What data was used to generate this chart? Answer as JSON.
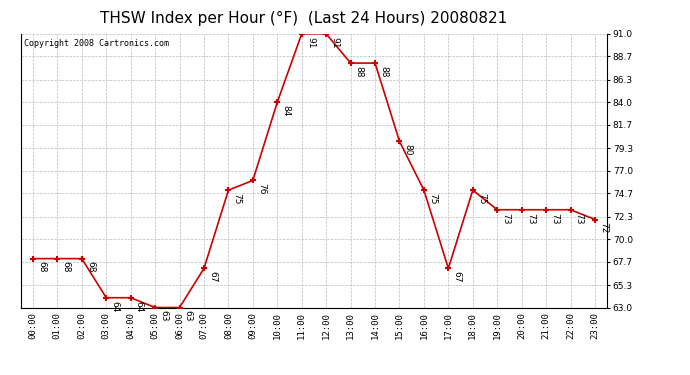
{
  "title": "THSW Index per Hour (°F)  (Last 24 Hours) 20080821",
  "copyright": "Copyright 2008 Cartronics.com",
  "hours": [
    "00:00",
    "01:00",
    "02:00",
    "03:00",
    "04:00",
    "05:00",
    "06:00",
    "07:00",
    "08:00",
    "09:00",
    "10:00",
    "11:00",
    "12:00",
    "13:00",
    "14:00",
    "15:00",
    "16:00",
    "17:00",
    "18:00",
    "19:00",
    "20:00",
    "21:00",
    "22:00",
    "23:00"
  ],
  "values": [
    68,
    68,
    68,
    64,
    64,
    63,
    63,
    67,
    75,
    76,
    84,
    91,
    91,
    88,
    88,
    80,
    75,
    67,
    75,
    73,
    73,
    73,
    73,
    72
  ],
  "line_color": "#cc0000",
  "marker_color": "#cc0000",
  "bg_color": "#ffffff",
  "plot_bg_color": "#ffffff",
  "grid_color": "#bbbbbb",
  "ylim_min": 63.0,
  "ylim_max": 91.0,
  "ytick_values": [
    63.0,
    65.3,
    67.7,
    70.0,
    72.3,
    74.7,
    77.0,
    79.3,
    81.7,
    84.0,
    86.3,
    88.7,
    91.0
  ],
  "ytick_labels": [
    "63.0",
    "65.3",
    "67.7",
    "70.0",
    "72.3",
    "74.7",
    "77.0",
    "79.3",
    "81.7",
    "84.0",
    "86.3",
    "88.7",
    "91.0"
  ],
  "title_fontsize": 11,
  "label_fontsize": 6.5,
  "tick_fontsize": 6.5,
  "copyright_fontsize": 6
}
